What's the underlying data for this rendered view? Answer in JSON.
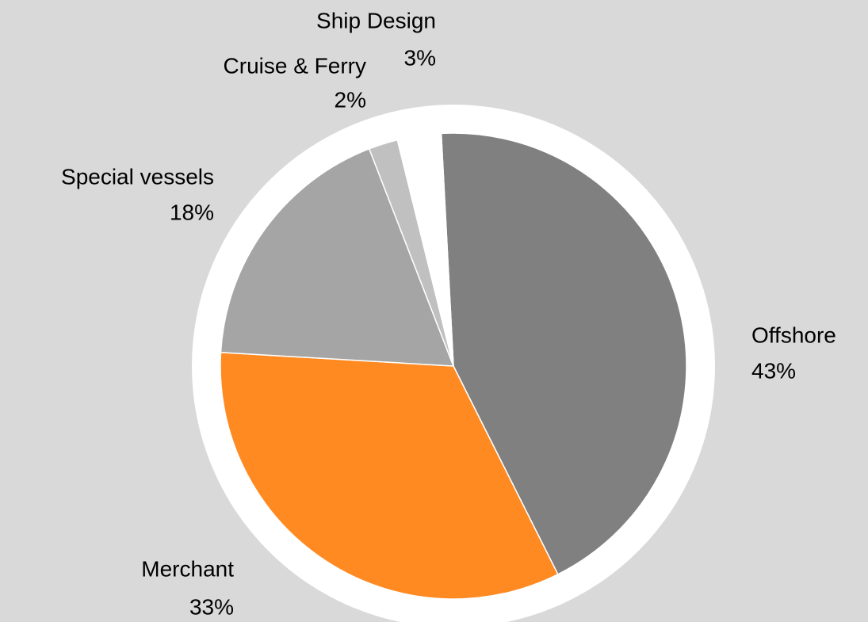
{
  "chart_data": {
    "type": "pie",
    "categories": [
      "Offshore",
      "Merchant",
      "Special vessels",
      "Cruise & Ferry",
      "Ship Design"
    ],
    "values": [
      43,
      33,
      18,
      2,
      3
    ],
    "value_labels": [
      "43%",
      "33%",
      "18%",
      "2%",
      "3%"
    ],
    "colors": [
      "#808080",
      "#ff8a22",
      "#a5a5a5",
      "#c0c0c0",
      "#ffffff"
    ]
  }
}
